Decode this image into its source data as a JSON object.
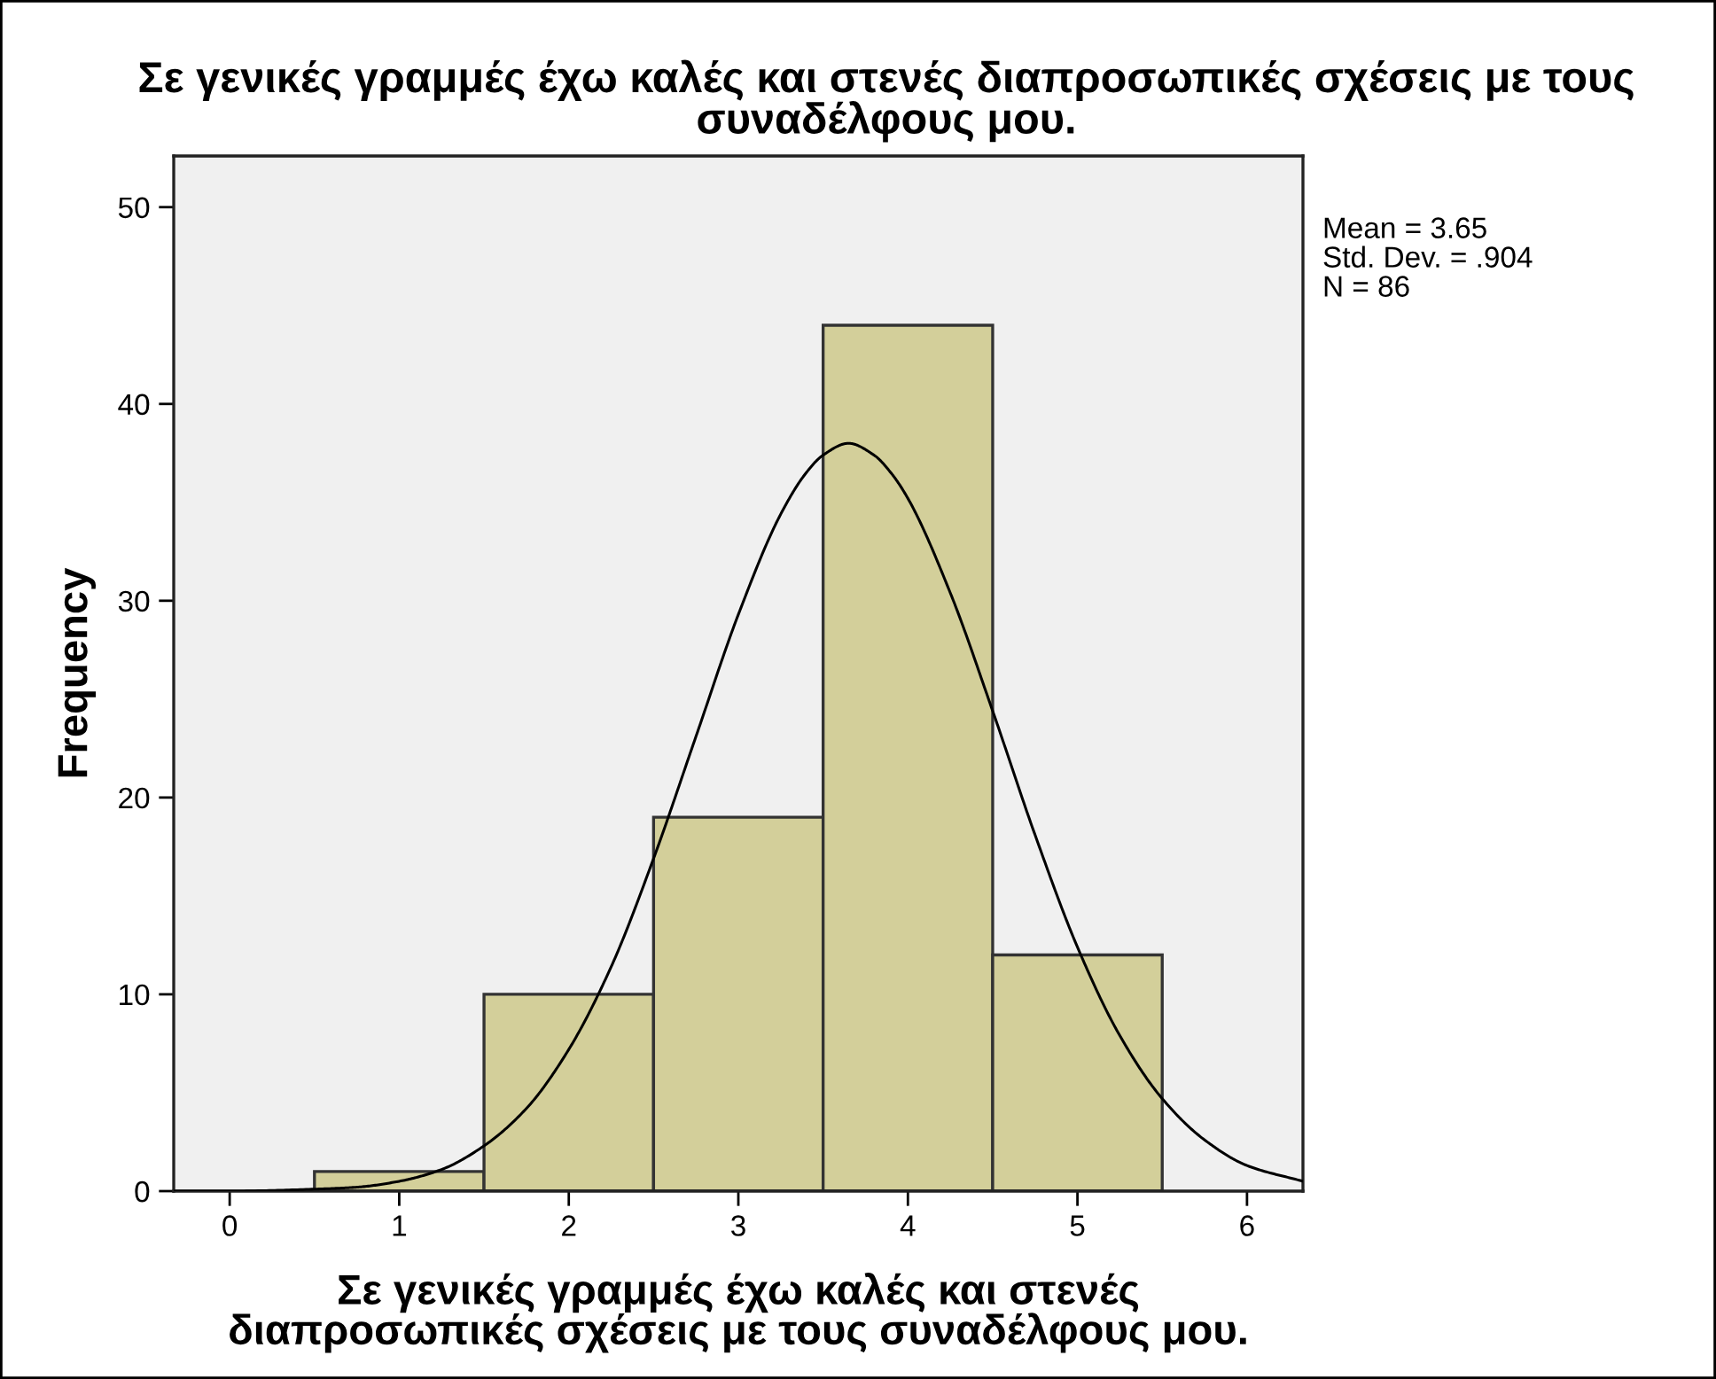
{
  "chart_data": {
    "type": "histogram",
    "title": "Σε γενικές γραμμές έχω καλές και στενές διαπροσωπικές σχέσεις με τους\nσυναδέλφους μου.",
    "xlabel": "Σε γενικές γραμμές έχω καλές και στενές\nδιαπροσωπικές σχέσεις με τους συναδέλφους μου.",
    "ylabel": "Frequency",
    "bins": [
      0.5,
      1.5,
      2.5,
      3.5,
      4.5,
      5.5
    ],
    "values": [
      1,
      10,
      19,
      44,
      12
    ],
    "color": "#d3cf9a",
    "series": [
      {
        "type": "line",
        "color": "#000000",
        "x": [
          -0.33,
          0,
          0.5,
          0.75,
          1,
          1.25,
          1.5,
          1.75,
          2,
          2.25,
          2.5,
          2.75,
          3,
          3.25,
          3.4,
          3.5,
          3.65,
          3.8,
          3.9,
          4,
          4.25,
          4.5,
          4.75,
          5,
          5.25,
          5.5,
          5.75,
          6,
          6.33
        ],
        "values": [
          0,
          0,
          0.1,
          0.2,
          0.5,
          1.1,
          2.3,
          4.2,
          7.2,
          11.4,
          16.9,
          23.1,
          29.3,
          34.4,
          36.5,
          37.4,
          38,
          37.4,
          36.5,
          35.2,
          30.4,
          24.4,
          18.1,
          12.4,
          7.9,
          4.7,
          2.6,
          1.3,
          0.5
        ]
      }
    ],
    "xlim": [
      -0.33,
      6.33
    ],
    "ylim": [
      0,
      52.6
    ],
    "xticks": [
      0,
      1,
      2,
      3,
      4,
      5,
      6
    ],
    "yticks": [
      0,
      10,
      20,
      30,
      40,
      50
    ],
    "grid": false,
    "legend": false,
    "annotations": [
      "Mean = 3.65",
      "Std. Dev. = .904",
      "N = 86"
    ]
  }
}
